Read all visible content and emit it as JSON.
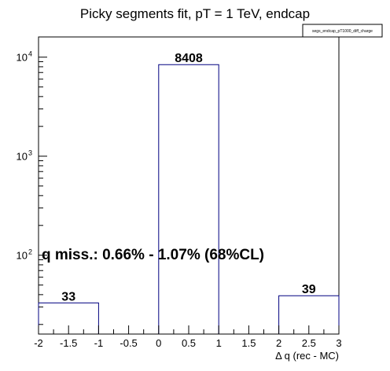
{
  "chart_data": {
    "type": "bar",
    "title": "Picky segments fit, pT = 1 TeV, endcap",
    "stat_box_label": "segs_endcap_pT1000_diff_charge",
    "xlabel": "Δ q (rec - MC)",
    "ylabel": "",
    "xlim": [
      -2,
      3
    ],
    "ylim": [
      16,
      16000
    ],
    "y_scale": "log",
    "x_ticks": [
      "-2",
      "-1.5",
      "-1",
      "-0.5",
      "0",
      "0.5",
      "1",
      "1.5",
      "2",
      "2.5",
      "3"
    ],
    "y_ticks": [
      {
        "value": 100,
        "base": "10",
        "exp": "2"
      },
      {
        "value": 1000,
        "base": "10",
        "exp": "3"
      },
      {
        "value": 10000,
        "base": "10",
        "exp": "4"
      }
    ],
    "bins": [
      {
        "x0": -2,
        "x1": -1,
        "value": 33,
        "label": "33"
      },
      {
        "x0": 0,
        "x1": 1,
        "value": 8408,
        "label": "8408"
      },
      {
        "x0": 2,
        "x1": 3,
        "value": 39,
        "label": "39"
      }
    ],
    "annotation": "q miss.: 0.66% - 1.07% (68%CL)",
    "grid": false,
    "line_color": "#000080"
  }
}
